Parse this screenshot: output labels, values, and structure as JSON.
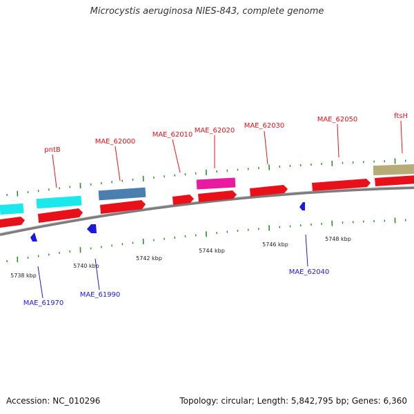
{
  "title": "Microcystis aeruginosa NIES-843, complete genome",
  "footer": {
    "accession": "Accession: NC_010296",
    "topology": "Topology: circular; Length: 5,842,795 bp; Genes: 6,360"
  },
  "colors": {
    "forward_gene": "#e8111a",
    "reverse_gene": "#1a1adc",
    "cyan_feature": "#19e8ec",
    "steel_feature": "#4b7fb0",
    "magenta_feature": "#e81aa0",
    "tan_feature": "#b5ac78",
    "tick": "#2a8c2a",
    "backbone": "#8a8a8a"
  },
  "upper_labels": [
    "pntB",
    "MAE_62000",
    "MAE_62010",
    "MAE_62020",
    "MAE_62030",
    "MAE_62050",
    "ftsH"
  ],
  "lower_labels": [
    "MAE_61970",
    "MAE_61990",
    "MAE_62040"
  ],
  "kbp_labels": [
    "5738 kbp",
    "5740 kbp",
    "5742 kbp",
    "5744 kbp",
    "5746 kbp",
    "5748 kbp"
  ]
}
